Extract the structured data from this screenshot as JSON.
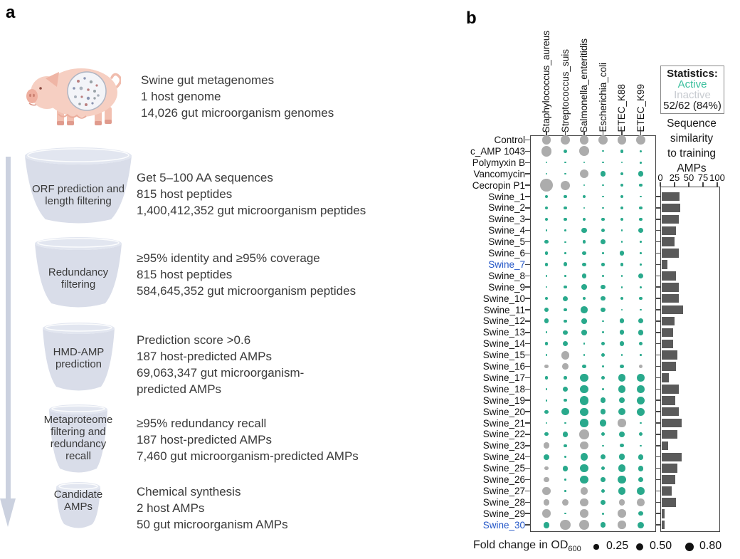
{
  "figure": {
    "panel_a_label": "a",
    "panel_b_label": "b"
  },
  "panel_a": {
    "source_lines": [
      "Swine gut metagenomes",
      "1 host genome",
      "14,026 gut microorganism genomes"
    ],
    "steps": [
      {
        "funnel_lines": [
          "ORF prediction and",
          "length filtering"
        ],
        "text_lines": [
          "Get 5–100 AA sequences",
          "815 host peptides",
          "1,400,412,352 gut microorganism peptides"
        ]
      },
      {
        "funnel_lines": [
          "Redundancy",
          "filtering"
        ],
        "text_lines": [
          "≥95% identity and ≥95% coverage",
          "815 host peptides",
          "584,645,352 gut microorganism peptides"
        ]
      },
      {
        "funnel_lines": [
          "HMD-AMP",
          "prediction"
        ],
        "text_lines": [
          "Prediction score >0.6",
          "187 host-predicted AMPs",
          "69,063,347 gut microorganism-",
          "predicted AMPs"
        ]
      },
      {
        "funnel_lines": [
          "Metaproteome",
          "filtering and",
          "redundancy",
          "recall"
        ],
        "text_lines": [
          "≥95% redundancy recall",
          "187 host-predicted AMPs",
          "7,460 gut microorganism-predicted AMPs"
        ]
      },
      {
        "funnel_lines": [
          "Candidate",
          "AMPs"
        ],
        "text_lines": [
          "Chemical synthesis",
          "2 host AMPs",
          "50 gut microorganism AMPs"
        ]
      }
    ]
  },
  "panel_b": {
    "stats_box": {
      "title": "Statistics:",
      "active_label": "Active",
      "inactive_label": "Inactive",
      "value": "52/62 (84%)"
    },
    "bar_title_lines": [
      "Sequence",
      "similarity",
      "to training",
      "AMPs"
    ],
    "legend": {
      "label": "Fold change in OD",
      "sub": "600",
      "items": [
        {
          "value": "0.25",
          "v": 0.25
        },
        {
          "value": "0.50",
          "v": 0.5
        },
        {
          "value": "0.80",
          "v": 0.8
        }
      ]
    },
    "colors": {
      "active": "#29A98C",
      "inactive": "#ACACAC",
      "bar": "#5A5A5A",
      "highlight_label": "#2356C7",
      "active_text": "#36BE9B",
      "inactive_text": "#C7CBD0"
    }
  },
  "chart_data": {
    "type": "bubble-matrix+bar",
    "columns": [
      "Staphylococcus_aureus",
      "Streptococcus_suis",
      "Salmonella_enteritidis",
      "Escherichia_coli",
      "ETEC_K88",
      "ETEC_K99"
    ],
    "bar_axis": {
      "ticks": [
        0,
        25,
        50,
        75,
        100
      ],
      "range": [
        0,
        100
      ]
    },
    "size_legend": [
      0.25,
      0.5,
      0.8
    ],
    "size_legend_label": "Fold change in OD600",
    "rows": [
      {
        "label": "Control",
        "similarity": null,
        "highlight": false,
        "fold_change": [
          0.8,
          0.8,
          0.8,
          0.8,
          0.8,
          0.8
        ],
        "active": [
          false,
          false,
          false,
          false,
          false,
          false
        ]
      },
      {
        "label": "c_AMP 1043",
        "similarity": null,
        "highlight": false,
        "fold_change": [
          1.05,
          0.12,
          0.93,
          0.02,
          0.1,
          0.06
        ],
        "active": [
          false,
          true,
          false,
          true,
          true,
          true
        ]
      },
      {
        "label": "Polymyxin B",
        "similarity": null,
        "highlight": false,
        "fold_change": [
          0.02,
          0.02,
          0.02,
          0.02,
          0.02,
          0.03
        ],
        "active": [
          true,
          true,
          true,
          true,
          true,
          true
        ]
      },
      {
        "label": "Vancomycin",
        "similarity": null,
        "highlight": false,
        "fold_change": [
          0.03,
          0.02,
          0.68,
          0.3,
          0.08,
          0.3
        ],
        "active": [
          true,
          true,
          false,
          true,
          true,
          true
        ]
      },
      {
        "label": "Cecropin P1",
        "similarity": null,
        "highlight": false,
        "fold_change": [
          1.5,
          0.8,
          0.03,
          0.03,
          0.1,
          0.08
        ],
        "active": [
          false,
          false,
          true,
          true,
          true,
          true
        ]
      },
      {
        "label": "Swine_1",
        "similarity": 32,
        "highlight": false,
        "fold_change": [
          0.1,
          0.08,
          0.08,
          0.02,
          0.1,
          0.03
        ],
        "active": [
          true,
          true,
          true,
          true,
          true,
          true
        ]
      },
      {
        "label": "Swine_2",
        "similarity": 33,
        "highlight": false,
        "fold_change": [
          0.08,
          0.08,
          0.03,
          0.02,
          0.1,
          0.08
        ],
        "active": [
          true,
          true,
          true,
          true,
          true,
          true
        ]
      },
      {
        "label": "Swine_3",
        "similarity": 31,
        "highlight": false,
        "fold_change": [
          0.1,
          0.1,
          0.08,
          0.08,
          0.1,
          0.08
        ],
        "active": [
          true,
          true,
          true,
          true,
          true,
          true
        ]
      },
      {
        "label": "Swine_4",
        "similarity": 25,
        "highlight": false,
        "fold_change": [
          0.03,
          0.03,
          0.27,
          0.12,
          0.03,
          0.23
        ],
        "active": [
          true,
          true,
          true,
          true,
          true,
          true
        ]
      },
      {
        "label": "Swine_5",
        "similarity": 23,
        "highlight": false,
        "fold_change": [
          0.12,
          0.02,
          0.1,
          0.2,
          0.03,
          0.03
        ],
        "active": [
          true,
          true,
          true,
          true,
          true,
          true
        ]
      },
      {
        "label": "Swine_6",
        "similarity": 30,
        "highlight": false,
        "fold_change": [
          0.1,
          0.03,
          0.12,
          0.03,
          0.23,
          0.03
        ],
        "active": [
          true,
          true,
          true,
          true,
          true,
          true
        ]
      },
      {
        "label": "Swine_7",
        "similarity": 10,
        "highlight": true,
        "fold_change": [
          0.1,
          0.17,
          0.12,
          0.1,
          0.1,
          0.03
        ],
        "active": [
          true,
          true,
          true,
          true,
          true,
          true
        ]
      },
      {
        "label": "Swine_8",
        "similarity": 26,
        "highlight": false,
        "fold_change": [
          0.04,
          0.03,
          0.2,
          0.04,
          0.04,
          0.23
        ],
        "active": [
          true,
          true,
          true,
          true,
          true,
          true
        ]
      },
      {
        "label": "Swine_9",
        "similarity": 31,
        "highlight": false,
        "fold_change": [
          0.03,
          0.1,
          0.27,
          0.2,
          0.04,
          0.04
        ],
        "active": [
          true,
          true,
          true,
          true,
          true,
          true
        ]
      },
      {
        "label": "Swine_10",
        "similarity": 31,
        "highlight": false,
        "fold_change": [
          0.1,
          0.23,
          0.1,
          0.2,
          0.1,
          0.1
        ],
        "active": [
          true,
          true,
          true,
          true,
          true,
          true
        ]
      },
      {
        "label": "Swine_11",
        "similarity": 38,
        "highlight": false,
        "fold_change": [
          0.17,
          0.1,
          0.43,
          0.2,
          0.03,
          0.03
        ],
        "active": [
          true,
          true,
          true,
          true,
          true,
          true
        ]
      },
      {
        "label": "Swine_12",
        "similarity": 23,
        "highlight": false,
        "fold_change": [
          0.23,
          0.1,
          0.27,
          0.03,
          0.23,
          0.23
        ],
        "active": [
          true,
          true,
          true,
          true,
          true,
          true
        ]
      },
      {
        "label": "Swine_13",
        "similarity": 20,
        "highlight": false,
        "fold_change": [
          0.04,
          0.2,
          0.27,
          0.04,
          0.23,
          0.27
        ],
        "active": [
          true,
          true,
          true,
          true,
          true,
          true
        ]
      },
      {
        "label": "Swine_14",
        "similarity": 21,
        "highlight": false,
        "fold_change": [
          0.1,
          0.27,
          0.03,
          0.12,
          0.23,
          0.12
        ],
        "active": [
          true,
          true,
          true,
          true,
          true,
          true
        ]
      },
      {
        "label": "Swine_15",
        "similarity": 28,
        "highlight": false,
        "fold_change": [
          0.03,
          0.68,
          0.03,
          0.12,
          0.03,
          0.03
        ],
        "active": [
          true,
          false,
          true,
          true,
          true,
          true
        ]
      },
      {
        "label": "Swine_16",
        "similarity": 25,
        "highlight": false,
        "fold_change": [
          0.12,
          0.34,
          0.12,
          0.04,
          0.12,
          0.12
        ],
        "active": [
          false,
          false,
          true,
          true,
          true,
          false
        ]
      },
      {
        "label": "Swine_17",
        "similarity": 13,
        "highlight": false,
        "fold_change": [
          0.1,
          0.1,
          0.58,
          0.12,
          0.52,
          0.52
        ],
        "active": [
          true,
          true,
          true,
          true,
          true,
          true
        ]
      },
      {
        "label": "Swine_18",
        "similarity": 30,
        "highlight": false,
        "fold_change": [
          0.04,
          0.27,
          0.58,
          0.04,
          0.52,
          0.52
        ],
        "active": [
          true,
          true,
          true,
          true,
          true,
          true
        ]
      },
      {
        "label": "Swine_19",
        "similarity": 24,
        "highlight": false,
        "fold_change": [
          0.04,
          0.1,
          0.8,
          0.3,
          0.34,
          0.58
        ],
        "active": [
          true,
          true,
          true,
          true,
          true,
          true
        ]
      },
      {
        "label": "Swine_20",
        "similarity": 30,
        "highlight": false,
        "fold_change": [
          0.12,
          0.52,
          0.58,
          0.3,
          0.48,
          0.58
        ],
        "active": [
          true,
          true,
          true,
          true,
          true,
          true
        ]
      },
      {
        "label": "Swine_21",
        "similarity": 36,
        "highlight": false,
        "fold_change": [
          0.03,
          0.04,
          0.58,
          0.43,
          0.58,
          0.04
        ],
        "active": [
          true,
          true,
          true,
          true,
          false,
          true
        ]
      },
      {
        "label": "Swine_22",
        "similarity": 28,
        "highlight": false,
        "fold_change": [
          0.12,
          0.3,
          0.87,
          0.12,
          0.3,
          0.12
        ],
        "active": [
          true,
          true,
          false,
          true,
          true,
          true
        ]
      },
      {
        "label": "Swine_23",
        "similarity": 12,
        "highlight": false,
        "fold_change": [
          0.38,
          0.1,
          0.58,
          0.03,
          0.12,
          0.03
        ],
        "active": [
          false,
          true,
          false,
          true,
          true,
          true
        ]
      },
      {
        "label": "Swine_24",
        "similarity": 36,
        "highlight": false,
        "fold_change": [
          0.3,
          0.04,
          0.52,
          0.27,
          0.34,
          0.3
        ],
        "active": [
          true,
          true,
          true,
          true,
          true,
          true
        ]
      },
      {
        "label": "Swine_25",
        "similarity": 28,
        "highlight": false,
        "fold_change": [
          0.14,
          0.3,
          0.58,
          0.14,
          0.52,
          0.3
        ],
        "active": [
          false,
          true,
          true,
          true,
          true,
          true
        ]
      },
      {
        "label": "Swine_26",
        "similarity": 24,
        "highlight": false,
        "fold_change": [
          0.3,
          0.03,
          0.58,
          0.2,
          0.58,
          0.3
        ],
        "active": [
          false,
          true,
          true,
          true,
          true,
          true
        ]
      },
      {
        "label": "Swine_27",
        "similarity": 18,
        "highlight": false,
        "fold_change": [
          0.58,
          0.03,
          0.52,
          0.14,
          0.52,
          0.52
        ],
        "active": [
          false,
          true,
          false,
          true,
          true,
          true
        ]
      },
      {
        "label": "Swine_28",
        "similarity": 26,
        "highlight": false,
        "fold_change": [
          0.38,
          0.38,
          0.58,
          0.27,
          0.38,
          0.52
        ],
        "active": [
          false,
          false,
          false,
          true,
          false,
          false
        ]
      },
      {
        "label": "Swine_29",
        "similarity": 5,
        "highlight": false,
        "fold_change": [
          0.62,
          0.03,
          0.62,
          0.04,
          0.62,
          0.2
        ],
        "active": [
          false,
          true,
          false,
          true,
          false,
          true
        ]
      },
      {
        "label": "Swine_30",
        "similarity": 6,
        "highlight": true,
        "fold_change": [
          0.38,
          1.0,
          1.0,
          0.3,
          0.62,
          0.38
        ],
        "active": [
          true,
          false,
          false,
          true,
          false,
          true
        ]
      }
    ]
  }
}
